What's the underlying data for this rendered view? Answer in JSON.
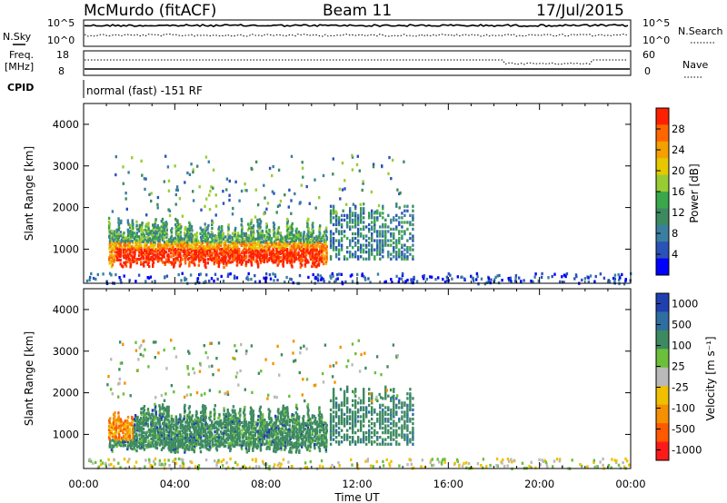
{
  "header": {
    "station": "McMurdo (fitACF)",
    "beam": "Beam 11",
    "date": "17/Jul/2015"
  },
  "noise_panel": {
    "left_label": "N.Sky",
    "left_ticks": [
      "10^5",
      "10^0"
    ],
    "right_ticks": [
      "10^5",
      "10^0"
    ],
    "right_label": "N.Search"
  },
  "freq_panel": {
    "left_label_line1": "Freq.",
    "left_label_line2": "[MHz]",
    "left_ticks": [
      "18",
      "8"
    ],
    "right_ticks": [
      "60",
      "0"
    ],
    "right_label": "Nave"
  },
  "cpid_panel": {
    "label": "CPID",
    "mode_text": "normal (fast) -151 RF"
  },
  "chart_data": [
    {
      "type": "heatmap",
      "panel": "power",
      "ylabel": "Slant Range [km]",
      "ylim": [
        180,
        4500
      ],
      "xlim_hours": [
        0,
        24
      ],
      "yticks": [
        "1000",
        "2000",
        "3000",
        "4000"
      ],
      "colorbar": {
        "label": "Power [dB]",
        "ticks": [
          "4",
          "8",
          "12",
          "16",
          "20",
          "24",
          "28"
        ],
        "range": [
          0,
          32
        ],
        "colors": [
          "#0000ff",
          "#2a52b8",
          "#3a7fa0",
          "#3d8a60",
          "#3aa84a",
          "#99cc33",
          "#e6c800",
          "#f5a000",
          "#ff6600",
          "#ff2000"
        ]
      }
    },
    {
      "type": "heatmap",
      "panel": "velocity",
      "ylabel": "Slant Range [km]",
      "ylim": [
        180,
        4500
      ],
      "xlim_hours": [
        0,
        24
      ],
      "yticks": [
        "1000",
        "2000",
        "3000",
        "4000"
      ],
      "colorbar": {
        "label": "Velocity [m s⁻¹]",
        "ticks": [
          "1000",
          "500",
          "100",
          "25",
          "-25",
          "-100",
          "-500",
          "-1000"
        ],
        "colors": [
          "#2040b0",
          "#2f6ea0",
          "#3d8a60",
          "#6bbf3a",
          "#b9b9b9",
          "#f0c000",
          "#f59000",
          "#ff5a00",
          "#ff1a1a"
        ]
      }
    }
  ],
  "time_axis": {
    "ticks": [
      "00:00",
      "04:00",
      "08:00",
      "12:00",
      "16:00",
      "20:00",
      "00:00"
    ],
    "label": "Time UT"
  }
}
